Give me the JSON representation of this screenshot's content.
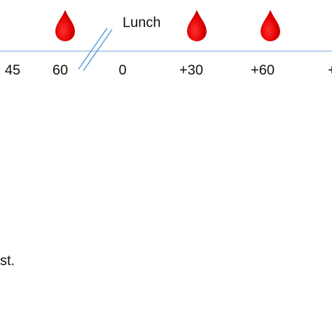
{
  "timeline": {
    "event": "Lunch",
    "ticks": [
      "45",
      "60",
      "0",
      "+30",
      "+60",
      "+"
    ]
  },
  "footnote": "st."
}
